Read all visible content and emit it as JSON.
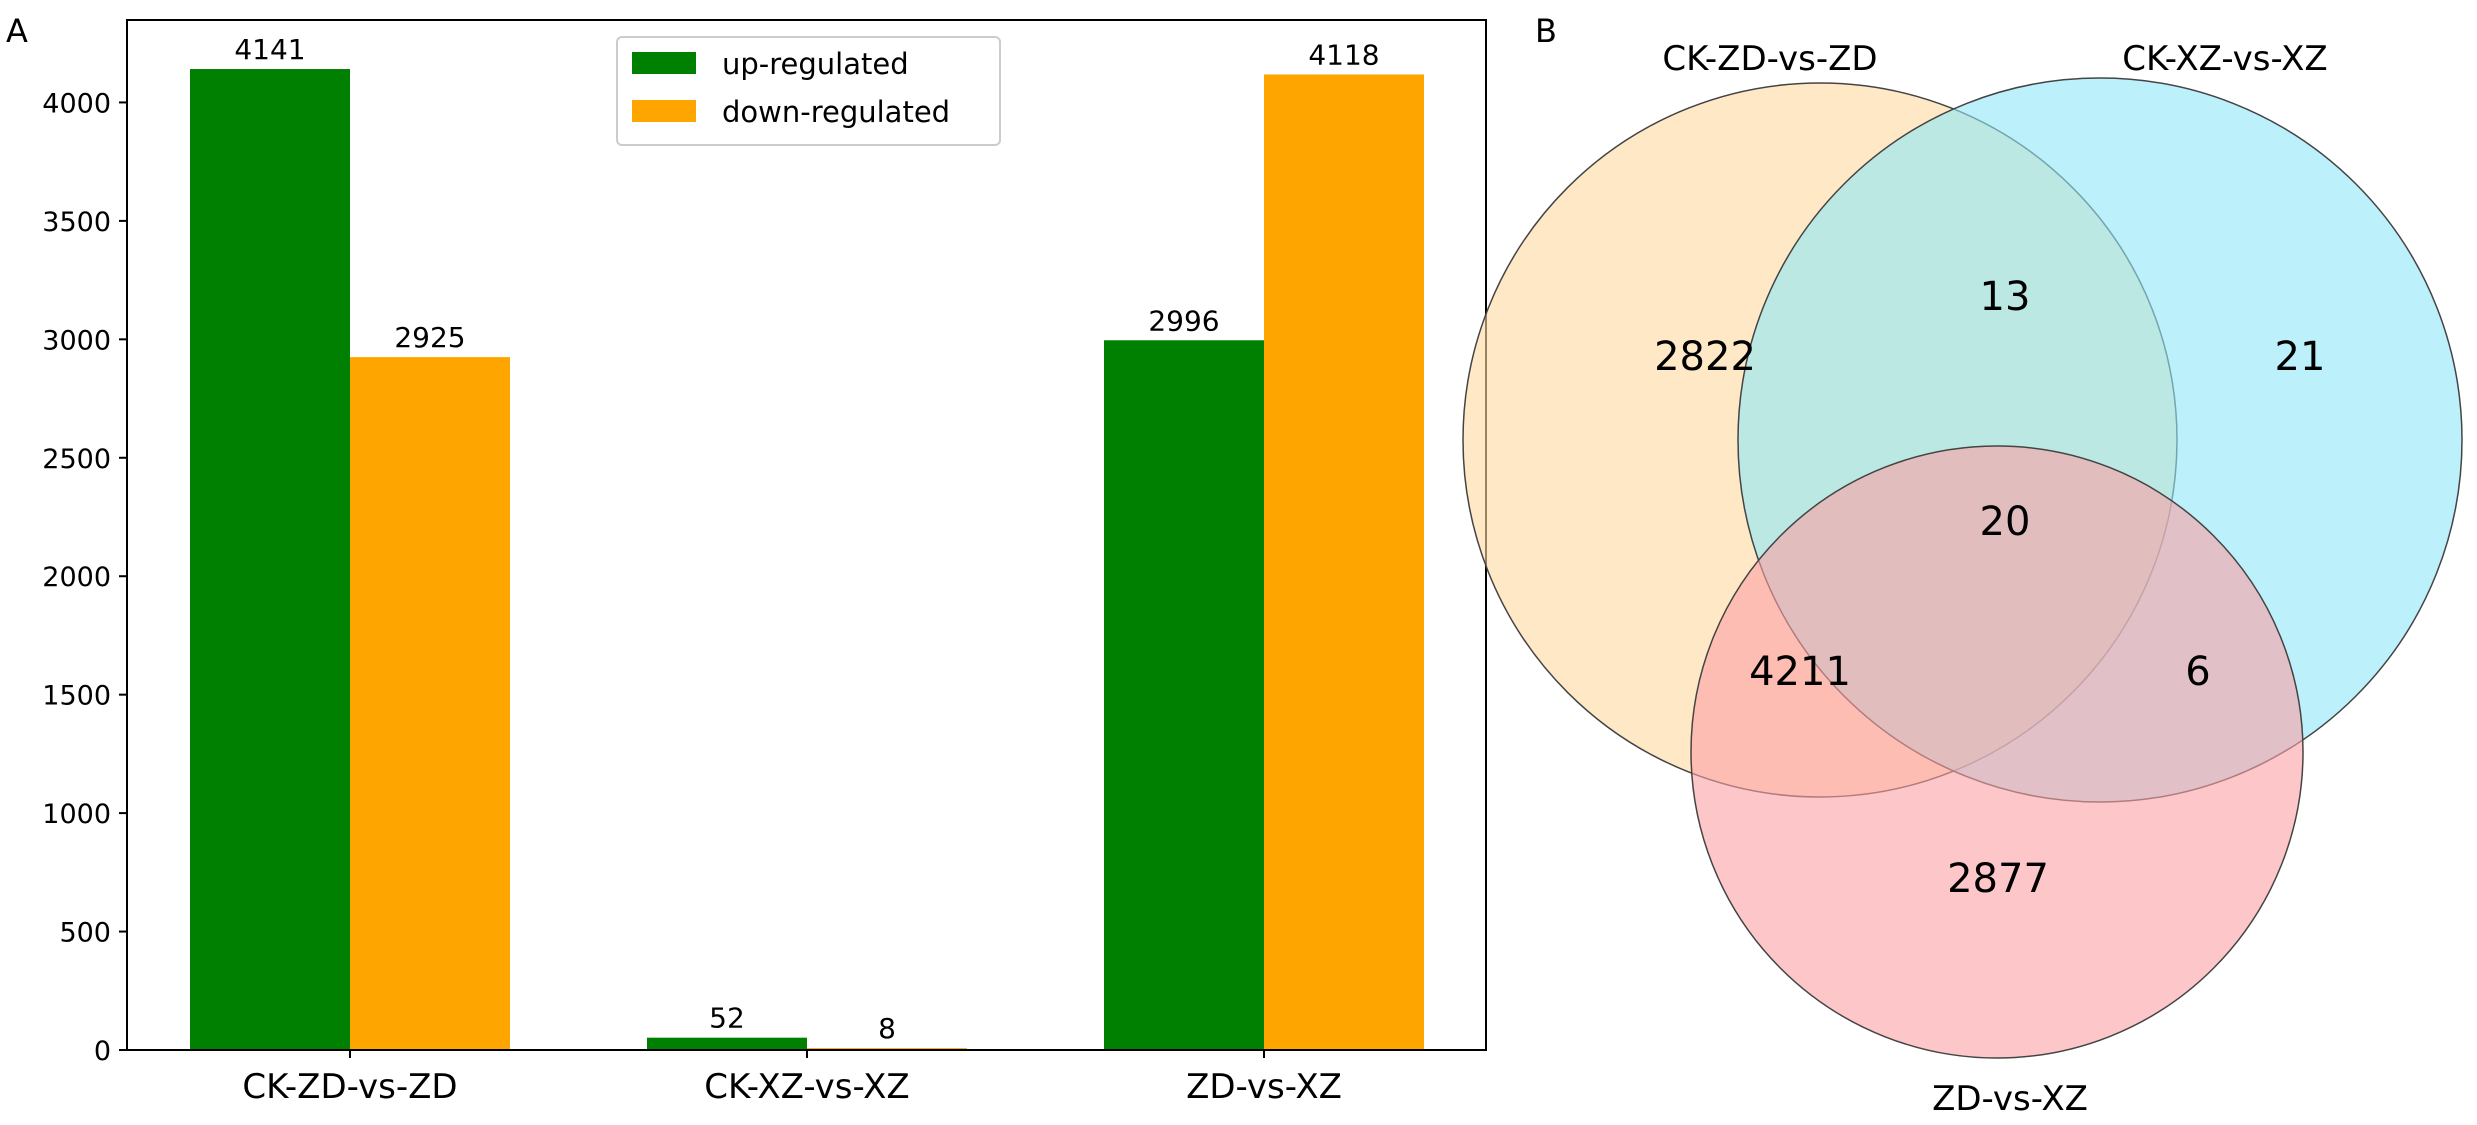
{
  "panel_labels": {
    "a": "A",
    "b": "B"
  },
  "chart_data": [
    {
      "type": "bar",
      "panel": "A",
      "title": "",
      "xlabel": "",
      "ylabel": "",
      "categories": [
        "CK-ZD-vs-ZD",
        "CK-XZ-vs-XZ",
        "ZD-vs-XZ"
      ],
      "series": [
        {
          "name": "up-regulated",
          "color": "#008000",
          "values": [
            4141,
            52,
            2996
          ]
        },
        {
          "name": "down-regulated",
          "color": "#ffa500",
          "values": [
            2925,
            8,
            4118
          ]
        }
      ],
      "yticks": [
        0,
        500,
        1000,
        1500,
        2000,
        2500,
        3000,
        3500,
        4000
      ],
      "ylim": [
        0,
        4348
      ],
      "legend_position": "top-center",
      "grid": false
    },
    {
      "type": "venn",
      "panel": "B",
      "sets": [
        {
          "name": "CK-ZD-vs-ZD",
          "color": "#fdd9a0"
        },
        {
          "name": "CK-XZ-vs-XZ",
          "color": "#90e8f8"
        },
        {
          "name": "ZD-vs-XZ",
          "color": "#fca0a5"
        }
      ],
      "regions": [
        {
          "sets": [
            "CK-ZD-vs-ZD"
          ],
          "count": 2822
        },
        {
          "sets": [
            "CK-XZ-vs-XZ"
          ],
          "count": 21
        },
        {
          "sets": [
            "ZD-vs-XZ"
          ],
          "count": 2877
        },
        {
          "sets": [
            "CK-ZD-vs-ZD",
            "CK-XZ-vs-XZ"
          ],
          "count": 13
        },
        {
          "sets": [
            "CK-ZD-vs-ZD",
            "ZD-vs-XZ"
          ],
          "count": 4211
        },
        {
          "sets": [
            "CK-XZ-vs-XZ",
            "ZD-vs-XZ"
          ],
          "count": 6
        },
        {
          "sets": [
            "CK-ZD-vs-ZD",
            "CK-XZ-vs-XZ",
            "ZD-vs-XZ"
          ],
          "count": 20
        }
      ]
    }
  ]
}
